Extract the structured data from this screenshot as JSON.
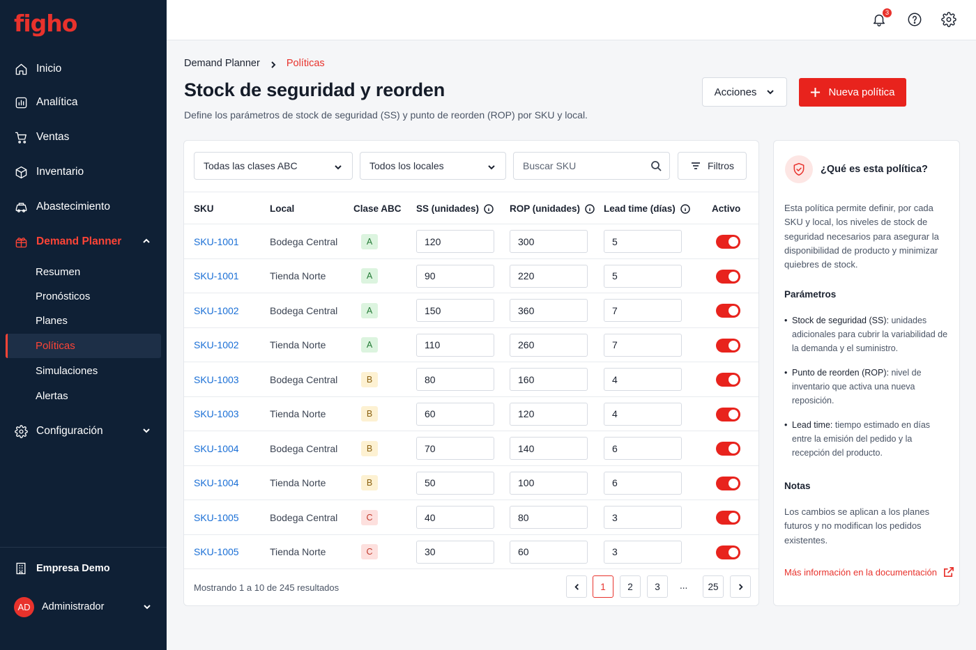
{
  "brand": {
    "logo": "figho",
    "accent": "#e8322c"
  },
  "sidebar": {
    "items": [
      {
        "label": "Inicio",
        "icon": "home-icon"
      },
      {
        "label": "Analítica",
        "icon": "chart-icon"
      },
      {
        "label": "Ventas",
        "icon": "cart-icon"
      },
      {
        "label": "Inventario",
        "icon": "box-icon"
      },
      {
        "label": "Abastecimiento",
        "icon": "truck-icon"
      },
      {
        "label": "Demand Planner",
        "icon": "planner-icon",
        "active": true,
        "expanded": true
      },
      {
        "label": "Configuración",
        "icon": "gear-icon"
      }
    ],
    "sub_items": [
      "Resumen",
      "Pronósticos",
      "Planes",
      "Políticas",
      "Simulaciones",
      "Alertas"
    ],
    "selected_sub": "Políticas",
    "company": "Empresa Demo",
    "user": {
      "initials": "AD",
      "name": "Administrador"
    }
  },
  "topbar": {
    "notification_count": "3"
  },
  "breadcrumb": {
    "parent": "Demand Planner",
    "current": "Políticas"
  },
  "page": {
    "title": "Stock de seguridad y reorden",
    "subtitle": "Define los parámetros de stock de seguridad (SS) y punto de reorden (ROP) por SKU y local.",
    "actions_label": "Acciones",
    "new_label": "Nueva política"
  },
  "filters": {
    "abc": "Todas las clases ABC",
    "local": "Todos los locales",
    "search_placeholder": "Buscar SKU",
    "filters_label": "Filtros"
  },
  "table": {
    "columns": [
      "SKU",
      "Local",
      "Clase ABC",
      "SS (unidades)",
      "ROP (unidades)",
      "Lead time (días)",
      "Activo"
    ],
    "rows": [
      {
        "sku": "SKU-1001",
        "local": "Bodega Central",
        "abc": "A",
        "ss": "120",
        "rop": "300",
        "lead": "5",
        "active": true
      },
      {
        "sku": "SKU-1001",
        "local": "Tienda Norte",
        "abc": "A",
        "ss": "90",
        "rop": "220",
        "lead": "5",
        "active": true
      },
      {
        "sku": "SKU-1002",
        "local": "Bodega Central",
        "abc": "A",
        "ss": "150",
        "rop": "360",
        "lead": "7",
        "active": true
      },
      {
        "sku": "SKU-1002",
        "local": "Tienda Norte",
        "abc": "A",
        "ss": "110",
        "rop": "260",
        "lead": "7",
        "active": true
      },
      {
        "sku": "SKU-1003",
        "local": "Bodega Central",
        "abc": "B",
        "ss": "80",
        "rop": "160",
        "lead": "4",
        "active": true
      },
      {
        "sku": "SKU-1003",
        "local": "Tienda Norte",
        "abc": "B",
        "ss": "60",
        "rop": "120",
        "lead": "4",
        "active": true
      },
      {
        "sku": "SKU-1004",
        "local": "Bodega Central",
        "abc": "B",
        "ss": "70",
        "rop": "140",
        "lead": "6",
        "active": true
      },
      {
        "sku": "SKU-1004",
        "local": "Tienda Norte",
        "abc": "B",
        "ss": "50",
        "rop": "100",
        "lead": "6",
        "active": true
      },
      {
        "sku": "SKU-1005",
        "local": "Bodega Central",
        "abc": "C",
        "ss": "40",
        "rop": "80",
        "lead": "3",
        "active": true
      },
      {
        "sku": "SKU-1005",
        "local": "Tienda Norte",
        "abc": "C",
        "ss": "30",
        "rop": "60",
        "lead": "3",
        "active": true
      }
    ],
    "showing": "Mostrando 1 a 10 de 245 resultados",
    "pages": [
      "1",
      "2",
      "3",
      "25"
    ],
    "ellipsis": "...",
    "current_page": "1"
  },
  "info_panel": {
    "title": "¿Qué es esta política?",
    "description": "Esta política permite definir, por cada SKU y local, los niveles de stock de seguridad necesarios para asegurar la disponibilidad de producto y minimizar quiebres de stock.",
    "params_heading": "Parámetros",
    "params": [
      {
        "term": "Stock de seguridad (SS):",
        "text": " unidades adicionales para cubrir la variabilidad de la demanda y el suministro."
      },
      {
        "term": "Punto de reorden (ROP):",
        "text": " nivel de inventario que activa una nueva reposición."
      },
      {
        "term": "Lead time:",
        "text": " tiempo estimado en días entre la emisión del pedido y la recepción del producto."
      }
    ],
    "notes_heading": "Notas",
    "notes": "Los cambios se aplican a los planes futuros y no modifican los pedidos existentes.",
    "doc_link": "Más información en la documentación"
  }
}
